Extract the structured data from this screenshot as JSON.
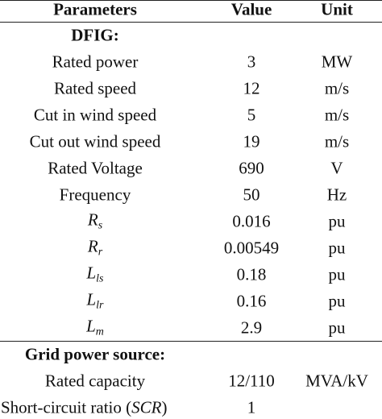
{
  "header": {
    "parameter": "Parameters",
    "value": "Value",
    "unit": "Unit"
  },
  "sections": [
    {
      "title": "DFIG:",
      "rows": [
        {
          "label": "Rated power",
          "value": "3",
          "unit": "MW"
        },
        {
          "label": "Rated speed",
          "value": "12",
          "unit": "m/s"
        },
        {
          "label": "Cut in wind speed",
          "value": "5",
          "unit": "m/s"
        },
        {
          "label": "Cut out wind speed",
          "value": "19",
          "unit": "m/s"
        },
        {
          "label": "Rated Voltage",
          "value": "690",
          "unit": "V"
        },
        {
          "label": "Frequency",
          "value": "50",
          "unit": "Hz"
        },
        {
          "symbol": "R",
          "subscript": "s",
          "value": "0.016",
          "unit": "pu"
        },
        {
          "symbol": "R",
          "subscript": "r",
          "value": "0.00549",
          "unit": "pu"
        },
        {
          "symbol": "L",
          "subscript": "ls",
          "value": "0.18",
          "unit": "pu"
        },
        {
          "symbol": "L",
          "subscript": "lr",
          "value": "0.16",
          "unit": "pu"
        },
        {
          "symbol": "L",
          "subscript": "m",
          "value": "2.9",
          "unit": "pu"
        }
      ]
    },
    {
      "title": "Grid power source:",
      "rows": [
        {
          "label": "Rated capacity",
          "value": "12/110",
          "unit": "MVA/kV"
        },
        {
          "label": "Short-circuit ratio (",
          "abbr": "SCR",
          "label_end": ")",
          "value": "1"
        }
      ]
    }
  ]
}
